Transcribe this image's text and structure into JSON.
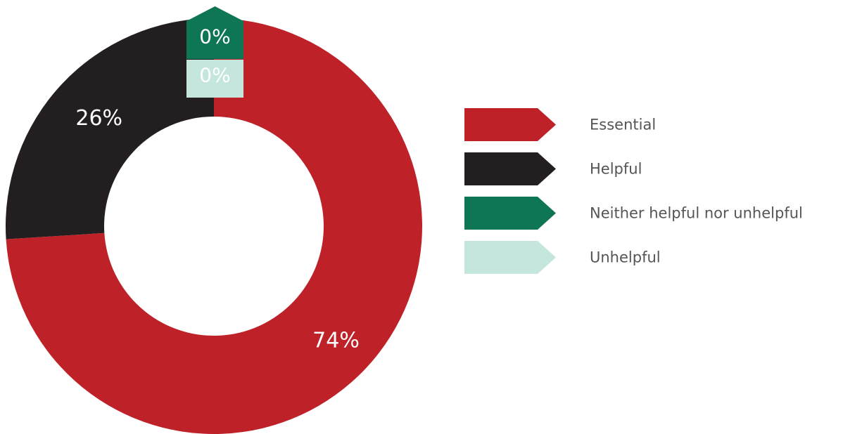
{
  "chart_data": {
    "type": "pie",
    "donut": true,
    "categories": [
      "Essential",
      "Helpful",
      "Neither helpful nor unhelpful",
      "Unhelpful"
    ],
    "values": [
      74,
      26,
      0,
      0
    ],
    "data_labels": [
      "74%",
      "26%",
      "0%",
      "0%"
    ],
    "colors": [
      "#be2128",
      "#231f20",
      "#0e7555",
      "#c5e6dd"
    ],
    "label_colors": [
      "#ffffff",
      "#ffffff",
      "#ffffff",
      "#231f20"
    ],
    "legend_position": "right"
  }
}
